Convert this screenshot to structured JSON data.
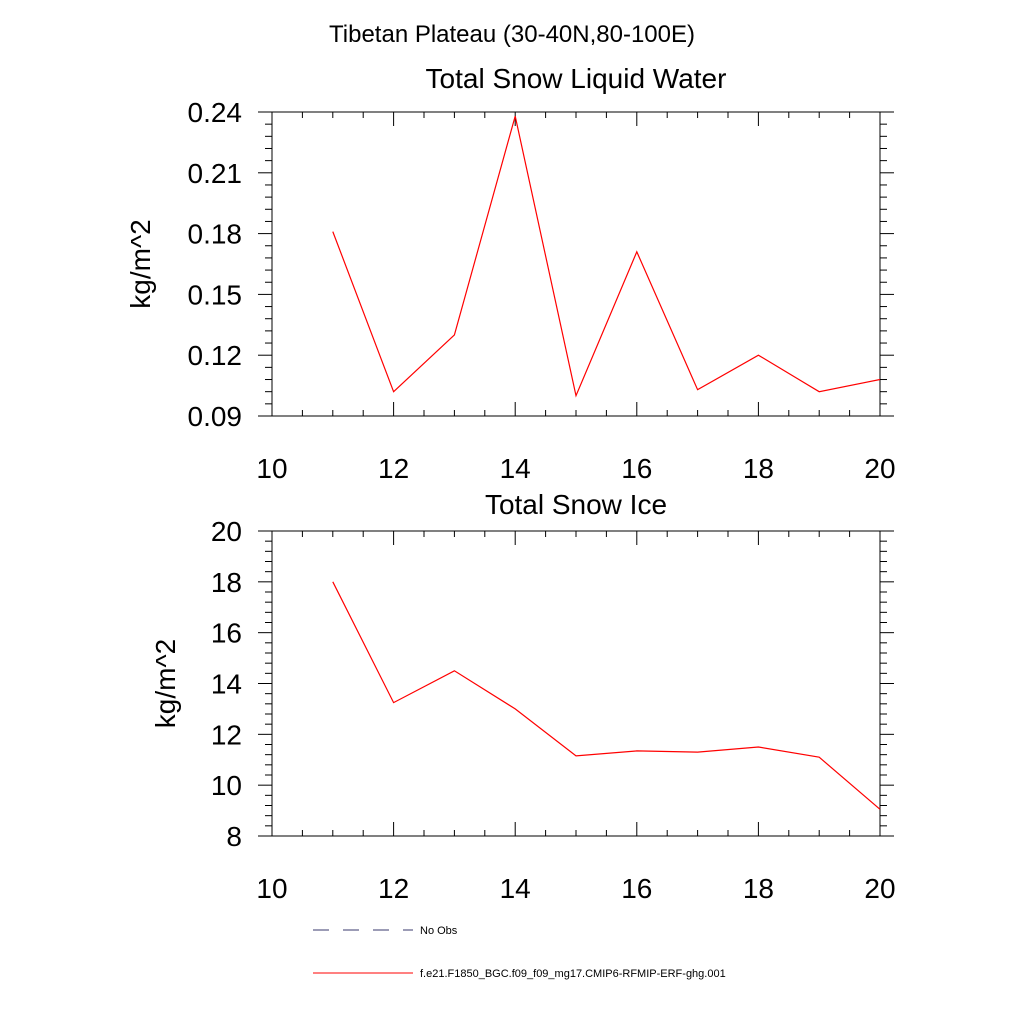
{
  "figure": {
    "main_title": "Tibetan Plateau (30-40N,80-100E)"
  },
  "colors": {
    "series_line": "#ff0000",
    "obs_line": "#3a3a6e",
    "axis": "#000000"
  },
  "legend": {
    "placement": "bottom",
    "entries": [
      {
        "label": "No Obs",
        "style": "dashed",
        "color": "#3a3a6e"
      },
      {
        "label": "f.e21.F1850_BGC.f09_f09_mg17.CMIP6-RFMIP-ERF-ghg.001",
        "style": "solid",
        "color": "#ff0000"
      }
    ]
  },
  "chart_data": [
    {
      "type": "line",
      "title": "Total Snow Liquid Water",
      "xlabel": "",
      "ylabel": "kg/m^2",
      "xlim": [
        10,
        20
      ],
      "ylim": [
        0.09,
        0.24
      ],
      "x_ticks": [
        10,
        12,
        14,
        16,
        18,
        20
      ],
      "x_tick_labels": [
        "10",
        "12",
        "14",
        "16",
        "18",
        "20"
      ],
      "y_ticks": [
        0.09,
        0.12,
        0.15,
        0.18,
        0.21,
        0.24
      ],
      "y_tick_labels": [
        "0.09",
        "0.12",
        "0.15",
        "0.18",
        "0.21",
        "0.24"
      ],
      "grid": false,
      "series": [
        {
          "name": "f.e21.F1850_BGC.f09_f09_mg17.CMIP6-RFMIP-ERF-ghg.001",
          "color": "#ff0000",
          "x": [
            11,
            12,
            13,
            14,
            15,
            16,
            17,
            18,
            19,
            20
          ],
          "y": [
            0.181,
            0.102,
            0.13,
            0.238,
            0.1,
            0.171,
            0.103,
            0.12,
            0.102,
            0.108
          ]
        }
      ]
    },
    {
      "type": "line",
      "title": "Total Snow Ice",
      "xlabel": "",
      "ylabel": "kg/m^2",
      "xlim": [
        10,
        20
      ],
      "ylim": [
        8,
        20
      ],
      "x_ticks": [
        10,
        12,
        14,
        16,
        18,
        20
      ],
      "x_tick_labels": [
        "10",
        "12",
        "14",
        "16",
        "18",
        "20"
      ],
      "y_ticks": [
        8,
        10,
        12,
        14,
        16,
        18,
        20
      ],
      "y_tick_labels": [
        "8",
        "10",
        "12",
        "14",
        "16",
        "18",
        "20"
      ],
      "grid": false,
      "series": [
        {
          "name": "f.e21.F1850_BGC.f09_f09_mg17.CMIP6-RFMIP-ERF-ghg.001",
          "color": "#ff0000",
          "x": [
            11,
            12,
            13,
            14,
            15,
            16,
            17,
            18,
            19,
            20
          ],
          "y": [
            18.0,
            13.25,
            14.5,
            13.0,
            11.15,
            11.35,
            11.3,
            11.5,
            11.1,
            9.05
          ]
        }
      ]
    }
  ]
}
